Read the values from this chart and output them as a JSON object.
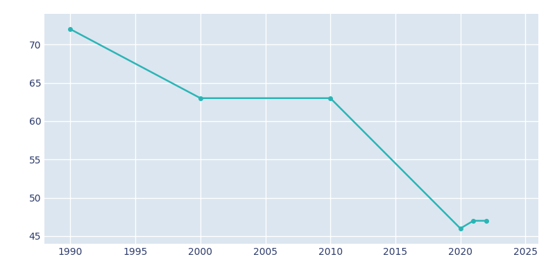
{
  "years": [
    1990,
    2000,
    2010,
    2020,
    2021,
    2022
  ],
  "population": [
    72,
    63,
    63,
    46,
    47,
    47
  ],
  "line_color": "#2ab5b5",
  "background_color": "#dce6f0",
  "fig_background_color": "#ffffff",
  "grid_color": "#ffffff",
  "text_color": "#2B3A6B",
  "xlim": [
    1988,
    2026
  ],
  "ylim": [
    44,
    74
  ],
  "xticks": [
    1990,
    1995,
    2000,
    2005,
    2010,
    2015,
    2020,
    2025
  ],
  "yticks": [
    45,
    50,
    55,
    60,
    65,
    70
  ],
  "line_width": 1.8,
  "marker": "o",
  "marker_size": 4
}
